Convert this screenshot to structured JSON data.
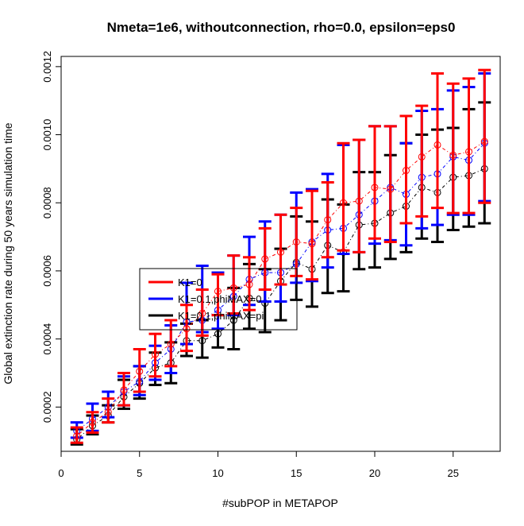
{
  "chart_data": {
    "type": "line",
    "title": "Nmeta=1e6, withoutconnection, rho=0.0, epsilon=eps0",
    "xlabel": "#subPOP in METAPOP",
    "ylabel": "Global extinction rate during 50 years simulation time",
    "xlim": [
      0,
      28
    ],
    "ylim": [
      7e-05,
      0.00123
    ],
    "x_ticks": [
      0,
      5,
      10,
      15,
      20,
      25
    ],
    "x_tick_labels": [
      "0",
      "5",
      "10",
      "15",
      "20",
      "25"
    ],
    "y_ticks": [
      0.0002,
      0.0004,
      0.0006,
      0.0008,
      0.001,
      0.0012
    ],
    "y_tick_labels": [
      "0.0002",
      "0.0004",
      "0.0006",
      "0.0008",
      "0.0010",
      "0.0012"
    ],
    "legend_position": "center-left",
    "x": [
      1,
      2,
      3,
      4,
      5,
      6,
      7,
      8,
      9,
      10,
      11,
      12,
      13,
      14,
      15,
      16,
      17,
      18,
      19,
      20,
      21,
      22,
      23,
      24,
      25,
      26,
      27
    ],
    "series": [
      {
        "name": "K1=0",
        "color": "#ff0000",
        "line_style": "dash-dot",
        "mean": [
          0.000115,
          0.000155,
          0.000185,
          0.00025,
          0.000305,
          0.000355,
          0.000385,
          0.00043,
          0.000475,
          0.00054,
          0.00055,
          0.00056,
          0.000635,
          0.000655,
          0.000685,
          0.00068,
          0.00075,
          0.0008,
          0.000805,
          0.000845,
          0.00084,
          0.000895,
          0.000935,
          0.00097,
          0.00094,
          0.00095,
          0.00098
        ],
        "lower": [
          9.5e-05,
          0.000125,
          0.000155,
          0.000205,
          0.000245,
          0.00029,
          0.00032,
          0.000365,
          0.00041,
          0.00047,
          0.000475,
          0.000485,
          0.000545,
          0.00056,
          0.000585,
          0.000575,
          0.00064,
          0.00066,
          0.000655,
          0.000695,
          0.000685,
          0.00074,
          0.00076,
          0.000785,
          0.00077,
          0.00077,
          0.0008
        ],
        "upper": [
          0.00014,
          0.000185,
          0.000225,
          0.0003,
          0.00037,
          0.000415,
          0.000455,
          0.0005,
          0.000545,
          0.00059,
          0.000645,
          0.00064,
          0.000725,
          0.000765,
          0.000785,
          0.000835,
          0.00086,
          0.000975,
          0.000985,
          0.001025,
          0.001025,
          0.001055,
          0.001085,
          0.00118,
          0.00115,
          0.001165,
          0.00119
        ]
      },
      {
        "name": "K1=0.1,phiMAX=0",
        "color": "#0000ff",
        "line_style": "dash-dot",
        "mean": [
          0.00013,
          0.000165,
          0.0002,
          0.000245,
          0.000275,
          0.00033,
          0.00037,
          0.00045,
          0.000455,
          0.000485,
          0.000525,
          0.000575,
          0.000595,
          0.000595,
          0.00062,
          0.000685,
          0.00072,
          0.000725,
          0.000765,
          0.000805,
          0.000845,
          0.000825,
          0.000875,
          0.000885,
          0.000935,
          0.000925,
          0.000975
        ],
        "lower": [
          0.00011,
          0.00013,
          0.00017,
          0.000205,
          0.000235,
          0.00028,
          0.0003,
          0.000385,
          0.00042,
          0.00043,
          0.00047,
          0.0005,
          0.00051,
          0.00051,
          0.000565,
          0.00057,
          0.00061,
          0.00065,
          0.000655,
          0.00068,
          0.00069,
          0.000675,
          0.000725,
          0.000735,
          0.000765,
          0.000765,
          0.000805
        ],
        "upper": [
          0.000155,
          0.00021,
          0.000245,
          0.00029,
          0.00032,
          0.00038,
          0.00044,
          0.000565,
          0.000615,
          0.000595,
          0.000645,
          0.0007,
          0.000745,
          0.000765,
          0.00083,
          0.00084,
          0.000885,
          0.00097,
          0.000985,
          0.001025,
          0.001025,
          0.000975,
          0.00107,
          0.001075,
          0.00113,
          0.00114,
          0.00118
        ]
      },
      {
        "name": "K1=0.1,phiMAX=pi",
        "color": "#000000",
        "line_style": "dash-dot",
        "mean": [
          0.000105,
          0.000145,
          0.000175,
          0.00023,
          0.00027,
          0.000315,
          0.00033,
          0.000395,
          0.000395,
          0.000415,
          0.000455,
          0.00052,
          0.000505,
          0.00057,
          0.000625,
          0.000605,
          0.000675,
          0.000655,
          0.000735,
          0.00074,
          0.00077,
          0.00079,
          0.000845,
          0.00083,
          0.000875,
          0.00088,
          0.0009
        ],
        "lower": [
          9e-05,
          0.00012,
          0.000155,
          0.000195,
          0.000225,
          0.000265,
          0.00027,
          0.00035,
          0.000345,
          0.000375,
          0.00037,
          0.00043,
          0.00042,
          0.000455,
          0.000515,
          0.000495,
          0.000535,
          0.00054,
          0.000605,
          0.00061,
          0.000635,
          0.000655,
          0.000695,
          0.000685,
          0.00072,
          0.00073,
          0.00074
        ],
        "upper": [
          0.000135,
          0.000175,
          0.000205,
          0.00028,
          0.00032,
          0.00036,
          0.00039,
          0.000445,
          0.000455,
          0.00047,
          0.00055,
          0.00062,
          0.000605,
          0.000665,
          0.00076,
          0.000745,
          0.00081,
          0.000795,
          0.00089,
          0.00089,
          0.00094,
          0.000975,
          0.001,
          0.001015,
          0.00102,
          0.001075,
          0.001095
        ]
      }
    ]
  }
}
